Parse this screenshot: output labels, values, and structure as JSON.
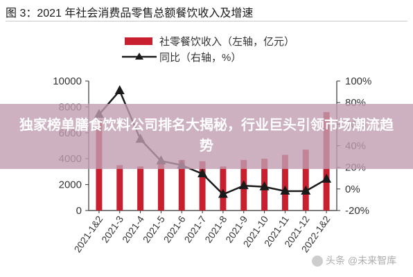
{
  "figure": {
    "title": "图 3：2021 年社会消费品零售总额餐饮收入及增速"
  },
  "banner": {
    "text": "独家榜单膳食饮料公司排名大揭秘，行业巨头引领市场潮流趋势"
  },
  "watermark": {
    "text": "头条 @未来智库"
  },
  "colors": {
    "bar": "#c8202f",
    "line": "#1a1a1a",
    "axis": "#333333",
    "text": "#333333"
  },
  "chart_data": {
    "type": "bar",
    "categories": [
      "2021-1&2",
      "2021-3",
      "2021-4",
      "2021-5",
      "2021-6",
      "2021-7",
      "2021-8",
      "2021-9",
      "2021-10",
      "2021-11",
      "2021-12",
      "2022-1&2"
    ],
    "series": [
      {
        "name": "社零餐饮收入（左轴，亿元）",
        "type": "bar",
        "axis": "left",
        "values": [
          7000,
          3500,
          3400,
          3800,
          3900,
          3800,
          3400,
          3900,
          4000,
          4300,
          4700,
          7600
        ]
      },
      {
        "name": "同比（右轴，%）",
        "type": "line",
        "axis": "right",
        "values": [
          69,
          91,
          46,
          26,
          22,
          14,
          -5,
          3,
          2,
          -2,
          -2,
          9
        ]
      }
    ],
    "y_left": {
      "ylim": [
        0,
        10000
      ],
      "ticks": [
        "0",
        "2000",
        "4000",
        "6000",
        "8000",
        "10000"
      ]
    },
    "y_right": {
      "ylim": [
        -20,
        100
      ],
      "ticks": [
        "-20%",
        "0%",
        "20%",
        "40%",
        "60%",
        "80%",
        "100%"
      ]
    },
    "grid": false,
    "legend": "top"
  }
}
